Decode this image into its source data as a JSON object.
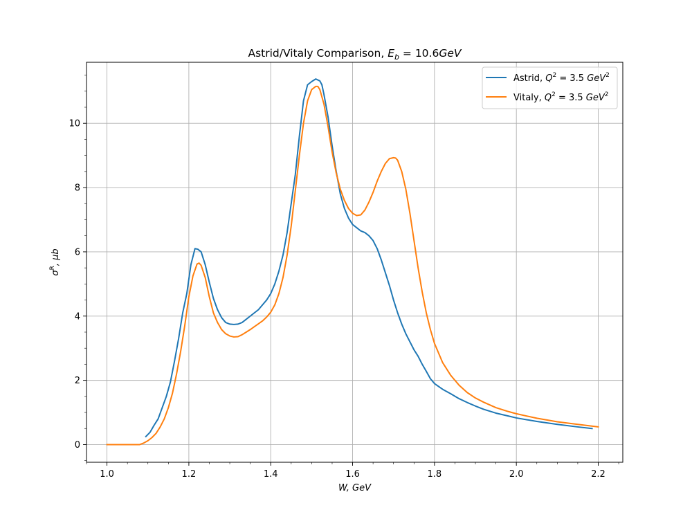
{
  "chart_data": {
    "type": "line",
    "title": {
      "prefix": "Astrid/Vitaly Comparison, ",
      "math_var": "E",
      "math_sub": "b",
      "math_rest": " = 10.6",
      "math_unit": "GeV"
    },
    "xlabel": "W, GeV",
    "ylabel": {
      "var": "σ",
      "sup": "R",
      "rest": ", μb"
    },
    "xlim": [
      0.95,
      2.26
    ],
    "ylim": [
      -0.55,
      11.9
    ],
    "xticks": [
      {
        "v": 1.0,
        "label": "1.0"
      },
      {
        "v": 1.2,
        "label": "1.2"
      },
      {
        "v": 1.4,
        "label": "1.4"
      },
      {
        "v": 1.6,
        "label": "1.6"
      },
      {
        "v": 1.8,
        "label": "1.8"
      },
      {
        "v": 2.0,
        "label": "2.0"
      },
      {
        "v": 2.2,
        "label": "2.2"
      }
    ],
    "yticks": [
      {
        "v": 0,
        "label": "0"
      },
      {
        "v": 2,
        "label": "2"
      },
      {
        "v": 4,
        "label": "4"
      },
      {
        "v": 6,
        "label": "6"
      },
      {
        "v": 8,
        "label": "8"
      },
      {
        "v": 10,
        "label": "10"
      }
    ],
    "grid": true,
    "legend_position": "top-right",
    "series": [
      {
        "name": "Astrid, Q2 = 3.5 GeV2",
        "label_parts": {
          "prefix": "Astrid, ",
          "var": "Q",
          "sup": "2",
          "mid": " = 3.5 ",
          "unit": "GeV",
          "unit_sup": "2"
        },
        "color": "#1f77b4",
        "x": [
          1.095,
          1.105,
          1.115,
          1.125,
          1.135,
          1.145,
          1.155,
          1.165,
          1.175,
          1.185,
          1.195,
          1.205,
          1.215,
          1.222,
          1.23,
          1.24,
          1.25,
          1.26,
          1.27,
          1.28,
          1.29,
          1.3,
          1.31,
          1.32,
          1.33,
          1.34,
          1.35,
          1.36,
          1.37,
          1.38,
          1.39,
          1.4,
          1.41,
          1.42,
          1.43,
          1.44,
          1.45,
          1.46,
          1.47,
          1.48,
          1.49,
          1.5,
          1.51,
          1.52,
          1.525,
          1.53,
          1.54,
          1.55,
          1.56,
          1.57,
          1.58,
          1.59,
          1.6,
          1.61,
          1.62,
          1.63,
          1.64,
          1.65,
          1.66,
          1.67,
          1.68,
          1.69,
          1.7,
          1.71,
          1.72,
          1.73,
          1.74,
          1.75,
          1.76,
          1.77,
          1.78,
          1.79,
          1.8,
          1.82,
          1.84,
          1.86,
          1.88,
          1.9,
          1.92,
          1.95,
          1.98,
          2.0,
          2.05,
          2.1,
          2.15,
          2.185
        ],
        "y": [
          0.25,
          0.38,
          0.6,
          0.8,
          1.15,
          1.5,
          1.95,
          2.6,
          3.3,
          4.1,
          4.7,
          5.6,
          6.1,
          6.08,
          6.0,
          5.6,
          5.05,
          4.55,
          4.2,
          3.95,
          3.8,
          3.75,
          3.74,
          3.75,
          3.8,
          3.9,
          4.0,
          4.1,
          4.2,
          4.35,
          4.5,
          4.7,
          5.0,
          5.4,
          5.9,
          6.6,
          7.5,
          8.4,
          9.6,
          10.7,
          11.2,
          11.3,
          11.38,
          11.32,
          11.2,
          10.9,
          10.2,
          9.3,
          8.5,
          7.8,
          7.35,
          7.05,
          6.85,
          6.75,
          6.65,
          6.6,
          6.5,
          6.35,
          6.1,
          5.75,
          5.35,
          4.95,
          4.5,
          4.1,
          3.75,
          3.45,
          3.2,
          2.95,
          2.75,
          2.5,
          2.28,
          2.05,
          1.9,
          1.72,
          1.58,
          1.43,
          1.31,
          1.2,
          1.1,
          0.98,
          0.89,
          0.83,
          0.72,
          0.63,
          0.55,
          0.5
        ]
      },
      {
        "name": "Vitaly, Q2 = 3.5 GeV2",
        "label_parts": {
          "prefix": "Vitaly, ",
          "var": "Q",
          "sup": "2",
          "mid": " = 3.5 ",
          "unit": "GeV",
          "unit_sup": "2"
        },
        "color": "#ff7f0e",
        "x": [
          1.0,
          1.02,
          1.04,
          1.06,
          1.08,
          1.09,
          1.1,
          1.11,
          1.12,
          1.13,
          1.14,
          1.15,
          1.16,
          1.17,
          1.18,
          1.19,
          1.2,
          1.21,
          1.22,
          1.225,
          1.23,
          1.24,
          1.25,
          1.26,
          1.27,
          1.28,
          1.29,
          1.3,
          1.31,
          1.32,
          1.33,
          1.34,
          1.35,
          1.36,
          1.37,
          1.38,
          1.39,
          1.4,
          1.41,
          1.42,
          1.43,
          1.44,
          1.45,
          1.46,
          1.47,
          1.48,
          1.49,
          1.5,
          1.51,
          1.515,
          1.52,
          1.53,
          1.54,
          1.55,
          1.56,
          1.57,
          1.58,
          1.59,
          1.6,
          1.61,
          1.62,
          1.63,
          1.64,
          1.65,
          1.66,
          1.67,
          1.68,
          1.69,
          1.7,
          1.705,
          1.71,
          1.72,
          1.73,
          1.74,
          1.75,
          1.76,
          1.77,
          1.78,
          1.79,
          1.8,
          1.82,
          1.84,
          1.86,
          1.88,
          1.9,
          1.92,
          1.95,
          1.98,
          2.0,
          2.05,
          2.1,
          2.15,
          2.2
        ],
        "y": [
          0,
          0,
          0,
          0,
          0,
          0.05,
          0.12,
          0.22,
          0.35,
          0.55,
          0.8,
          1.15,
          1.6,
          2.2,
          2.9,
          3.7,
          4.6,
          5.25,
          5.62,
          5.65,
          5.58,
          5.2,
          4.6,
          4.1,
          3.8,
          3.58,
          3.45,
          3.38,
          3.35,
          3.36,
          3.42,
          3.5,
          3.58,
          3.67,
          3.76,
          3.85,
          3.97,
          4.12,
          4.35,
          4.7,
          5.2,
          5.9,
          6.8,
          7.9,
          9.0,
          10.0,
          10.7,
          11.05,
          11.15,
          11.15,
          11.05,
          10.6,
          9.9,
          9.1,
          8.45,
          7.95,
          7.6,
          7.35,
          7.2,
          7.13,
          7.15,
          7.3,
          7.55,
          7.85,
          8.2,
          8.5,
          8.75,
          8.9,
          8.93,
          8.92,
          8.85,
          8.5,
          7.95,
          7.2,
          6.35,
          5.5,
          4.75,
          4.1,
          3.58,
          3.15,
          2.55,
          2.15,
          1.85,
          1.62,
          1.45,
          1.32,
          1.15,
          1.03,
          0.96,
          0.82,
          0.71,
          0.63,
          0.55
        ]
      }
    ]
  }
}
